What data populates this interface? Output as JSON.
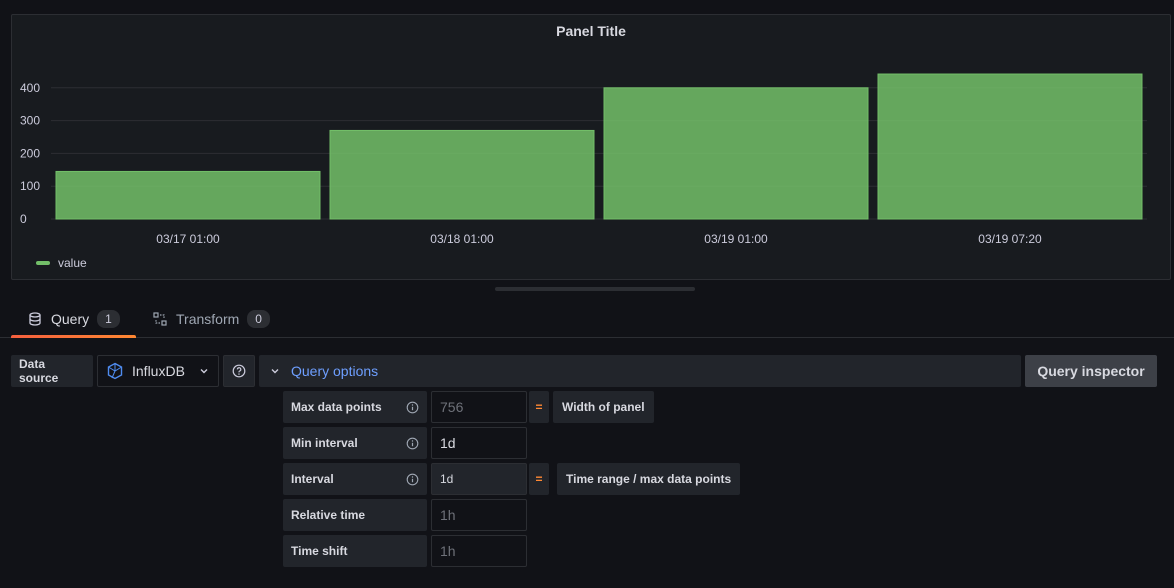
{
  "panel": {
    "title": "Panel Title",
    "legend": {
      "label": "value",
      "color": "#73bf69"
    }
  },
  "chart_data": {
    "type": "bar",
    "categories": [
      "03/17 01:00",
      "03/18 01:00",
      "03/19 01:00",
      "03/19 07:20"
    ],
    "series": [
      {
        "name": "value",
        "values": [
          145,
          270,
          400,
          442
        ],
        "color": "#73bf69"
      }
    ],
    "yticks": [
      0,
      100,
      200,
      300,
      400
    ],
    "ylim": [
      0,
      500
    ],
    "grid": true,
    "legend_position": "bottom-left"
  },
  "tabs": {
    "query": {
      "label": "Query",
      "count": "1",
      "icon": "database-icon"
    },
    "transform": {
      "label": "Transform",
      "count": "0",
      "icon": "transform-icon"
    }
  },
  "datasource": {
    "label": "Data source",
    "selected": "InfluxDB",
    "icon": "influxdb-icon"
  },
  "query_options": {
    "label": "Query options",
    "inspector_label": "Query inspector",
    "max_data_points": {
      "label": "Max data points",
      "placeholder": "756",
      "eq": "=",
      "note": "Width of panel"
    },
    "min_interval": {
      "label": "Min interval",
      "value": "1d"
    },
    "interval": {
      "label": "Interval",
      "value": "1d",
      "eq": "=",
      "note": "Time range / max data points"
    },
    "relative_time": {
      "label": "Relative time",
      "placeholder": "1h"
    },
    "time_shift": {
      "label": "Time shift",
      "placeholder": "1h"
    }
  },
  "colors": {
    "accent": "#6e9fff",
    "tab_indicator": "#ff8833",
    "bar": "#73bf69"
  }
}
